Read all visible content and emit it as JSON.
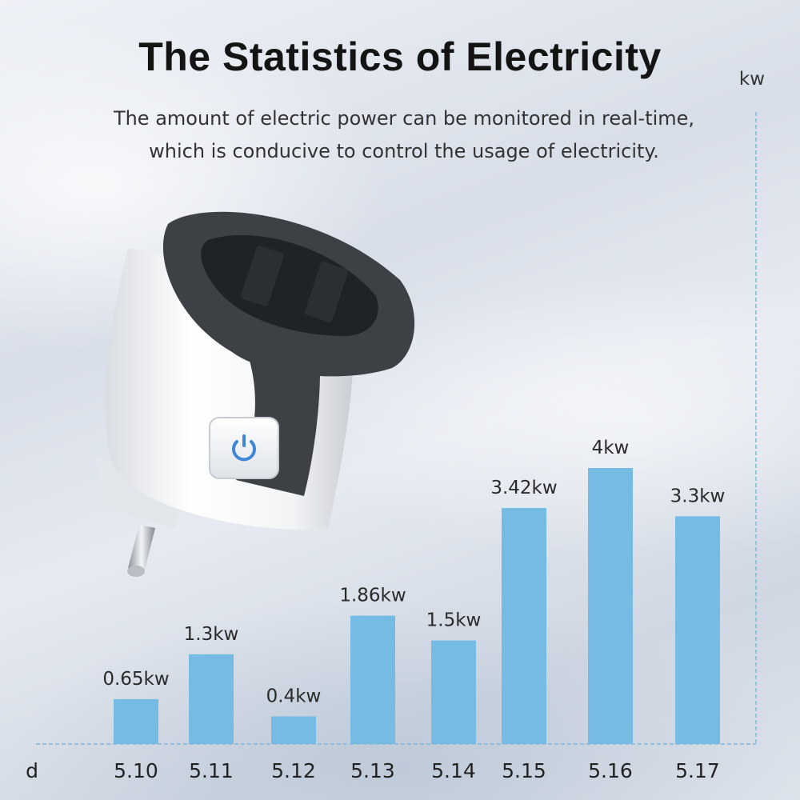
{
  "header": {
    "title": "The Statistics of Electricity",
    "subtitle_line1": "The amount of electric power can be monitored in real-time,",
    "subtitle_line2": "which is conducive to control the usage of electricity."
  },
  "product": {
    "icon": "power-button-icon"
  },
  "colors": {
    "bar": "#76bbe4",
    "axis": "#7fb8dc",
    "text": "#222222"
  },
  "chart_data": {
    "type": "bar",
    "categories": [
      "5.10",
      "5.11",
      "5.12",
      "5.13",
      "5.14",
      "5.15",
      "5.16",
      "5.17"
    ],
    "values": [
      0.65,
      1.3,
      0.4,
      1.86,
      1.5,
      3.42,
      4,
      3.3
    ],
    "data_labels": [
      "0.65kw",
      "1.3kw",
      "0.4kw",
      "1.86kw",
      "1.5kw",
      "3.42kw",
      "4kw",
      "3.3kw"
    ],
    "xlabel": "d",
    "ylabel": "kw",
    "grid": false
  }
}
